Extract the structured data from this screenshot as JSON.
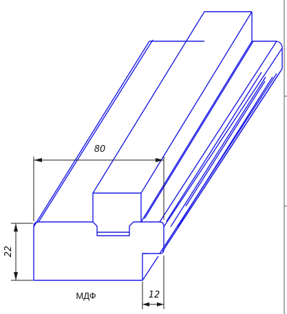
{
  "drawing": {
    "dimensions": {
      "length": "80",
      "height": "22",
      "width": "12"
    },
    "material": "МДФ",
    "colors": {
      "edge": "#1a1ae6",
      "dimension": "#1a1a1a"
    }
  }
}
